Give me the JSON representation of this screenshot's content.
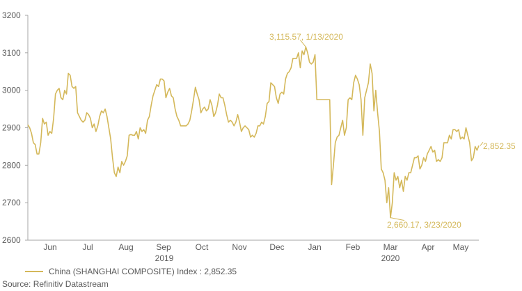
{
  "chart_data": {
    "type": "line",
    "y_ticks": [
      "3200",
      "3100",
      "3000",
      "2900",
      "2800",
      "2700",
      "2600"
    ],
    "ylim": [
      2600,
      3200
    ],
    "month_labels": [
      "Jun",
      "Jul",
      "Aug",
      "Sep",
      "Oct",
      "Nov",
      "Dec",
      "Jan",
      "Feb",
      "Mar",
      "Apr",
      "May"
    ],
    "year_labels": [
      "2019",
      "2020"
    ],
    "grid": false,
    "legend_position": "bottom-left",
    "color": "#d4b85a",
    "series": [
      {
        "name": "China (SHANGHAI COMPOSITE) Index : 2,852.35",
        "values": [
          2908,
          2900,
          2885,
          2860,
          2855,
          2830,
          2830,
          2860,
          2925,
          2910,
          2915,
          2880,
          2890,
          2885,
          2925,
          2990,
          3000,
          3005,
          2980,
          2975,
          3000,
          2990,
          3045,
          3040,
          3010,
          3005,
          3010,
          2940,
          2930,
          2920,
          2915,
          2920,
          2940,
          2935,
          2925,
          2900,
          2910,
          2890,
          2905,
          2930,
          2945,
          2940,
          2950,
          2930,
          2900,
          2870,
          2820,
          2780,
          2770,
          2795,
          2780,
          2810,
          2800,
          2810,
          2825,
          2880,
          2882,
          2880,
          2880,
          2890,
          2870,
          2900,
          2890,
          2895,
          2885,
          2920,
          2930,
          2960,
          2985,
          3000,
          3015,
          3010,
          3030,
          3030,
          3025,
          2980,
          2995,
          3005,
          2985,
          2980,
          2950,
          2930,
          2920,
          2905,
          2905,
          2905,
          2905,
          2910,
          2920,
          2945,
          2975,
          3008,
          2990,
          2975,
          2940,
          2950,
          2955,
          2945,
          2950,
          2975,
          2960,
          2930,
          2940,
          2960,
          2990,
          2980,
          2980,
          2960,
          2935,
          2915,
          2920,
          2915,
          2905,
          2915,
          2935,
          2915,
          2890,
          2900,
          2905,
          2900,
          2895,
          2875,
          2880,
          2875,
          2885,
          2905,
          2905,
          2915,
          2910,
          2930,
          2965,
          2970,
          3020,
          3015,
          3010,
          2980,
          2965,
          2990,
          2995,
          2990,
          3030,
          3045,
          3050,
          3060,
          3085,
          3085,
          3085,
          3100,
          3060,
          3105,
          3095,
          3115.57,
          3100,
          3075,
          3070,
          3075,
          3095,
          2975,
          2975,
          2975,
          2975,
          2975,
          2975,
          2975,
          2975,
          2748,
          2800,
          2860,
          2875,
          2880,
          2900,
          2920,
          2880,
          2900,
          2975,
          2980,
          2975,
          3020,
          3040,
          3030,
          3015,
          2975,
          2880,
          2980,
          3000,
          3020,
          3070,
          3045,
          2945,
          3000,
          2940,
          2890,
          2790,
          2780,
          2760,
          2700,
          2740,
          2660.17,
          2700,
          2780,
          2760,
          2770,
          2740,
          2760,
          2730,
          2770,
          2760,
          2780,
          2780,
          2800,
          2820,
          2820,
          2825,
          2790,
          2800,
          2820,
          2810,
          2830,
          2840,
          2850,
          2835,
          2840,
          2810,
          2815,
          2810,
          2820,
          2860,
          2860,
          2860,
          2880,
          2870,
          2895,
          2895,
          2890,
          2895,
          2870,
          2875,
          2870,
          2900,
          2880,
          2860,
          2812,
          2820,
          2850,
          2840,
          2852.35
        ]
      }
    ],
    "annotations": [
      {
        "label": "3,115.57, 1/13/2020",
        "value": 3115.57
      },
      {
        "label": "2,660.17, 3/23/2020",
        "value": 2660.17
      },
      {
        "label": "2,852.35",
        "value": 2852.35
      }
    ]
  },
  "footer": {
    "legend_label": "China (SHANGHAI COMPOSITE) Index : 2,852.35",
    "source": "Source: Refinitiv Datastream"
  }
}
